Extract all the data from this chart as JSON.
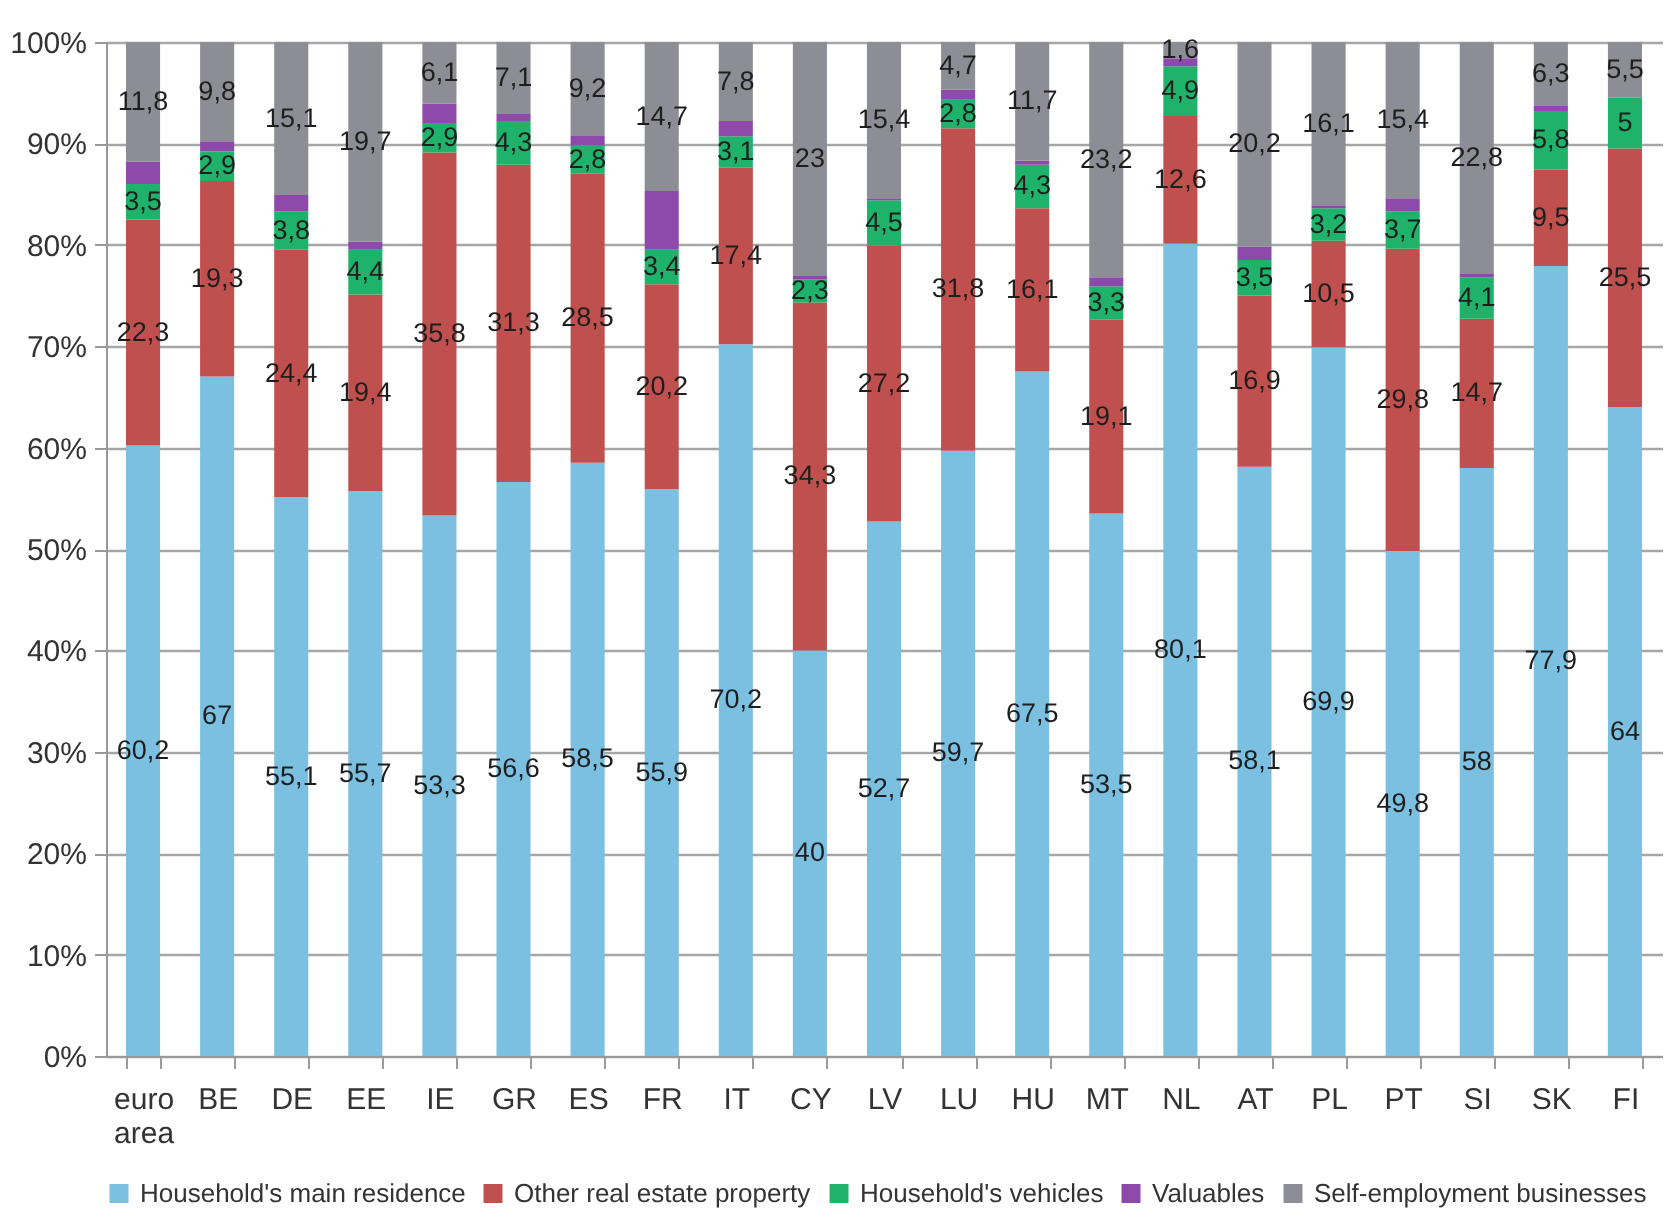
{
  "chart_data": {
    "type": "bar",
    "stacked": true,
    "grid": "y",
    "legend": "bottom",
    "categories": [
      "euro area",
      "BE",
      "DE",
      "EE",
      "IE",
      "GR",
      "ES",
      "FR",
      "IT",
      "CY",
      "LV",
      "LU",
      "HU",
      "MT",
      "NL",
      "AT",
      "PL",
      "PT",
      "SI",
      "SK",
      "FI"
    ],
    "ylim": [
      0,
      100
    ],
    "yticks": [
      {
        "value": 0,
        "label": "0%"
      },
      {
        "value": 10,
        "label": "10%"
      },
      {
        "value": 20,
        "label": "20%"
      },
      {
        "value": 30,
        "label": "30%"
      },
      {
        "value": 40,
        "label": "40%"
      },
      {
        "value": 50,
        "label": "50%"
      },
      {
        "value": 60,
        "label": "60%"
      },
      {
        "value": 70,
        "label": "70%"
      },
      {
        "value": 80,
        "label": "80%"
      },
      {
        "value": 90,
        "label": "90%"
      },
      {
        "value": 100,
        "label": "100%"
      }
    ],
    "series": [
      {
        "name": "Household's main residence",
        "color": "#7bc0e0",
        "values": [
          60.2,
          67,
          55.1,
          55.7,
          53.3,
          56.6,
          58.5,
          55.9,
          70.2,
          40,
          52.7,
          59.7,
          67.5,
          53.5,
          80.1,
          58.1,
          69.9,
          49.8,
          58,
          77.9,
          64
        ],
        "value_labels": [
          "60,2",
          "67",
          "55,1",
          "55,7",
          "53,3",
          "56,6",
          "58,5",
          "55,9",
          "70,2",
          "40",
          "52,7",
          "59,7",
          "67,5",
          "53,5",
          "80,1",
          "58,1",
          "69,9",
          "49,8",
          "58",
          "77,9",
          "64"
        ]
      },
      {
        "name": "Other real estate property",
        "color": "#c0504d",
        "values": [
          22.3,
          19.3,
          24.4,
          19.4,
          35.8,
          31.3,
          28.5,
          20.2,
          17.4,
          34.3,
          27.2,
          31.8,
          16.1,
          19.1,
          12.6,
          16.9,
          10.5,
          29.8,
          14.7,
          9.5,
          25.5
        ],
        "value_labels": [
          "22,3",
          "19,3",
          "24,4",
          "19,4",
          "35,8",
          "31,3",
          "28,5",
          "20,2",
          "17,4",
          "34,3",
          "27,2",
          "31,8",
          "16,1",
          "19,1",
          "12,6",
          "16,9",
          "10,5",
          "29,8",
          "14,7",
          "9,5",
          "25,5"
        ]
      },
      {
        "name": "Household's vehicles",
        "color": "#1fb26b",
        "values": [
          3.5,
          2.9,
          3.8,
          4.4,
          2.9,
          4.3,
          2.8,
          3.4,
          3.1,
          2.3,
          4.5,
          2.8,
          4.3,
          3.3,
          4.9,
          3.5,
          3.2,
          3.7,
          4.1,
          5.8,
          5
        ],
        "value_labels": [
          "3,5",
          "2,9",
          "3,8",
          "4,4",
          "2,9",
          "4,3",
          "2,8",
          "3,4",
          "3,1",
          "2,3",
          "4,5",
          "2,8",
          "4,3",
          "3,3",
          "4,9",
          "3,5",
          "3,2",
          "3,7",
          "4,1",
          "5,8",
          "5"
        ]
      },
      {
        "name": "Valuables",
        "color": "#8e4aab",
        "values": [
          2.2,
          1.0,
          1.6,
          0.8,
          1.9,
          0.7,
          1.0,
          5.8,
          1.5,
          0.4,
          0.2,
          1.0,
          0.4,
          0.9,
          0.8,
          1.3,
          0.3,
          1.3,
          0.4,
          0.5,
          0
        ]
      },
      {
        "name": "Self-employment businesses",
        "color": "#8d8d96",
        "values": [
          11.8,
          9.8,
          15.1,
          19.7,
          6.1,
          7.1,
          9.2,
          14.7,
          7.8,
          23,
          15.4,
          4.7,
          11.7,
          23.2,
          1.6,
          20.2,
          16.1,
          15.4,
          22.8,
          6.3,
          5.5
        ],
        "value_labels": [
          "11,8",
          "9,8",
          "15,1",
          "19,7",
          "6,1",
          "7,1",
          "9,2",
          "14,7",
          "7,8",
          "23",
          "15,4",
          "4,7",
          "11,7",
          "23,2",
          "1,6",
          "20,2",
          "16,1",
          "15,4",
          "22,8",
          "6,3",
          "5,5"
        ]
      }
    ]
  }
}
